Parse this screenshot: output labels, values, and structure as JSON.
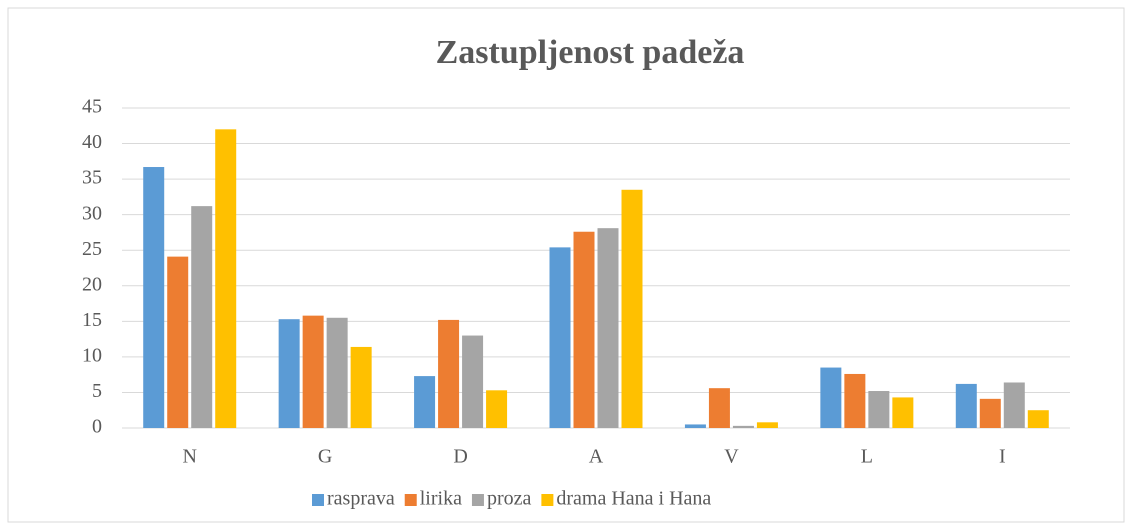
{
  "chart_data": {
    "type": "bar",
    "title": "Zastupljenost padeža",
    "categories": [
      "N",
      "G",
      "D",
      "A",
      "V",
      "L",
      "I"
    ],
    "series": [
      {
        "name": "rasprava",
        "color": "#5b9bd5",
        "values": [
          36.7,
          15.3,
          7.3,
          25.4,
          0.5,
          8.5,
          6.2
        ]
      },
      {
        "name": "lirika",
        "color": "#ed7d31",
        "values": [
          24.1,
          15.8,
          15.2,
          27.6,
          5.6,
          7.6,
          4.1
        ]
      },
      {
        "name": "proza",
        "color": "#a5a5a5",
        "values": [
          31.2,
          15.5,
          13.0,
          28.1,
          0.3,
          5.2,
          6.4
        ]
      },
      {
        "name": "drama Hana i Hana",
        "color": "#ffc000",
        "values": [
          42.0,
          11.4,
          5.3,
          33.5,
          0.8,
          4.3,
          2.5
        ]
      }
    ],
    "ylim": [
      0,
      45
    ],
    "yticks": [
      0,
      5,
      10,
      15,
      20,
      25,
      30,
      35,
      40,
      45
    ],
    "grid": true,
    "legend": "bottom"
  }
}
